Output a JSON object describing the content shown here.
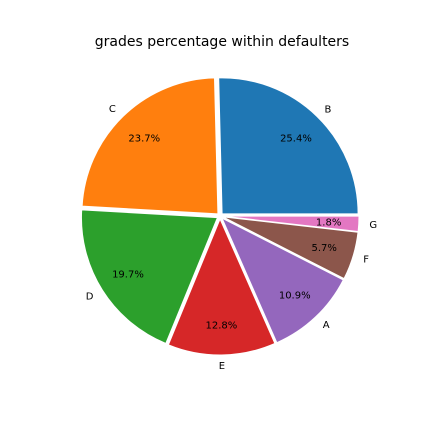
{
  "chart_data": {
    "type": "pie",
    "title": "grades percentage within defaulters",
    "labels": [
      "B",
      "C",
      "D",
      "E",
      "A",
      "F",
      "G"
    ],
    "values": [
      25.4,
      23.7,
      19.7,
      12.8,
      10.9,
      5.7,
      1.8
    ],
    "percent_labels": [
      "25.4%",
      "23.7%",
      "19.7%",
      "12.8%",
      "10.9%",
      "5.7%",
      "1.8%"
    ],
    "colors": [
      "#1f77b4",
      "#ff7f0e",
      "#2ca02c",
      "#d62728",
      "#9467bd",
      "#8c564b",
      "#e377c2"
    ],
    "start_angle": 0,
    "direction": "counterclockwise",
    "exploded": true
  }
}
